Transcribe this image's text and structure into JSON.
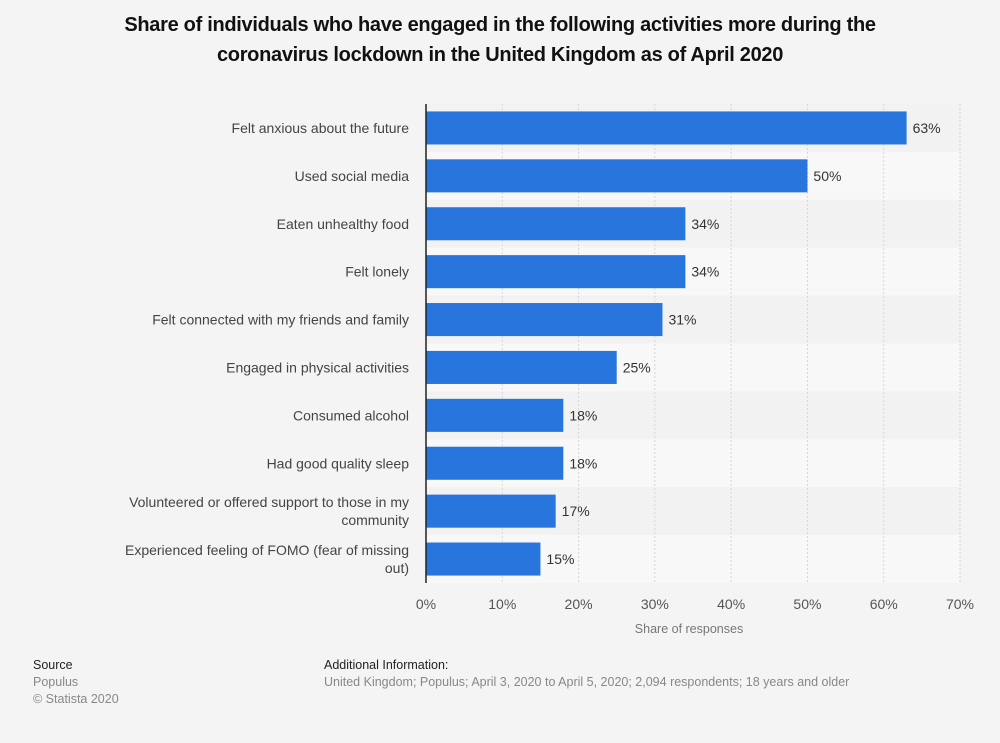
{
  "chart_data": {
    "type": "bar",
    "orientation": "horizontal",
    "title": "Share of individuals who have engaged in the following activities more during the coronavirus lockdown in the United Kingdom as of April 2020",
    "title_lines": [
      "Share of individuals who have engaged in the following activities more during the",
      "coronavirus lockdown in the United Kingdom as of April 2020"
    ],
    "categories": [
      [
        "Felt anxious about the future"
      ],
      [
        "Used social media"
      ],
      [
        "Eaten unhealthy food"
      ],
      [
        "Felt lonely"
      ],
      [
        "Felt connected with my friends and family"
      ],
      [
        "Engaged in physical activities"
      ],
      [
        "Consumed alcohol"
      ],
      [
        "Had good quality sleep"
      ],
      [
        "Volunteered or offered support to those in my",
        "community"
      ],
      [
        "Experienced feeling of FOMO (fear of missing",
        "out)"
      ]
    ],
    "values": [
      63,
      50,
      34,
      34,
      31,
      25,
      18,
      18,
      17,
      15
    ],
    "value_labels": [
      "63%",
      "50%",
      "34%",
      "34%",
      "31%",
      "25%",
      "18%",
      "18%",
      "17%",
      "15%"
    ],
    "xlabel": "Share of responses",
    "ylabel": "",
    "xlim": [
      0,
      70
    ],
    "xticks": [
      0,
      10,
      20,
      30,
      40,
      50,
      60,
      70
    ],
    "xtick_labels": [
      "0%",
      "10%",
      "20%",
      "30%",
      "40%",
      "50%",
      "60%",
      "70%"
    ],
    "grid": true,
    "legend": "none",
    "bar_color": "#2876dd",
    "band_colors": [
      "#f2f2f2",
      "#f8f8f8"
    ]
  },
  "footer": {
    "source_heading": "Source",
    "source_name": "Populus",
    "copyright": "© Statista 2020",
    "info_heading": "Additional Information:",
    "info_text": "United Kingdom; Populus; April 3, 2020 to April 5, 2020; 2,094 respondents; 18 years and older"
  }
}
